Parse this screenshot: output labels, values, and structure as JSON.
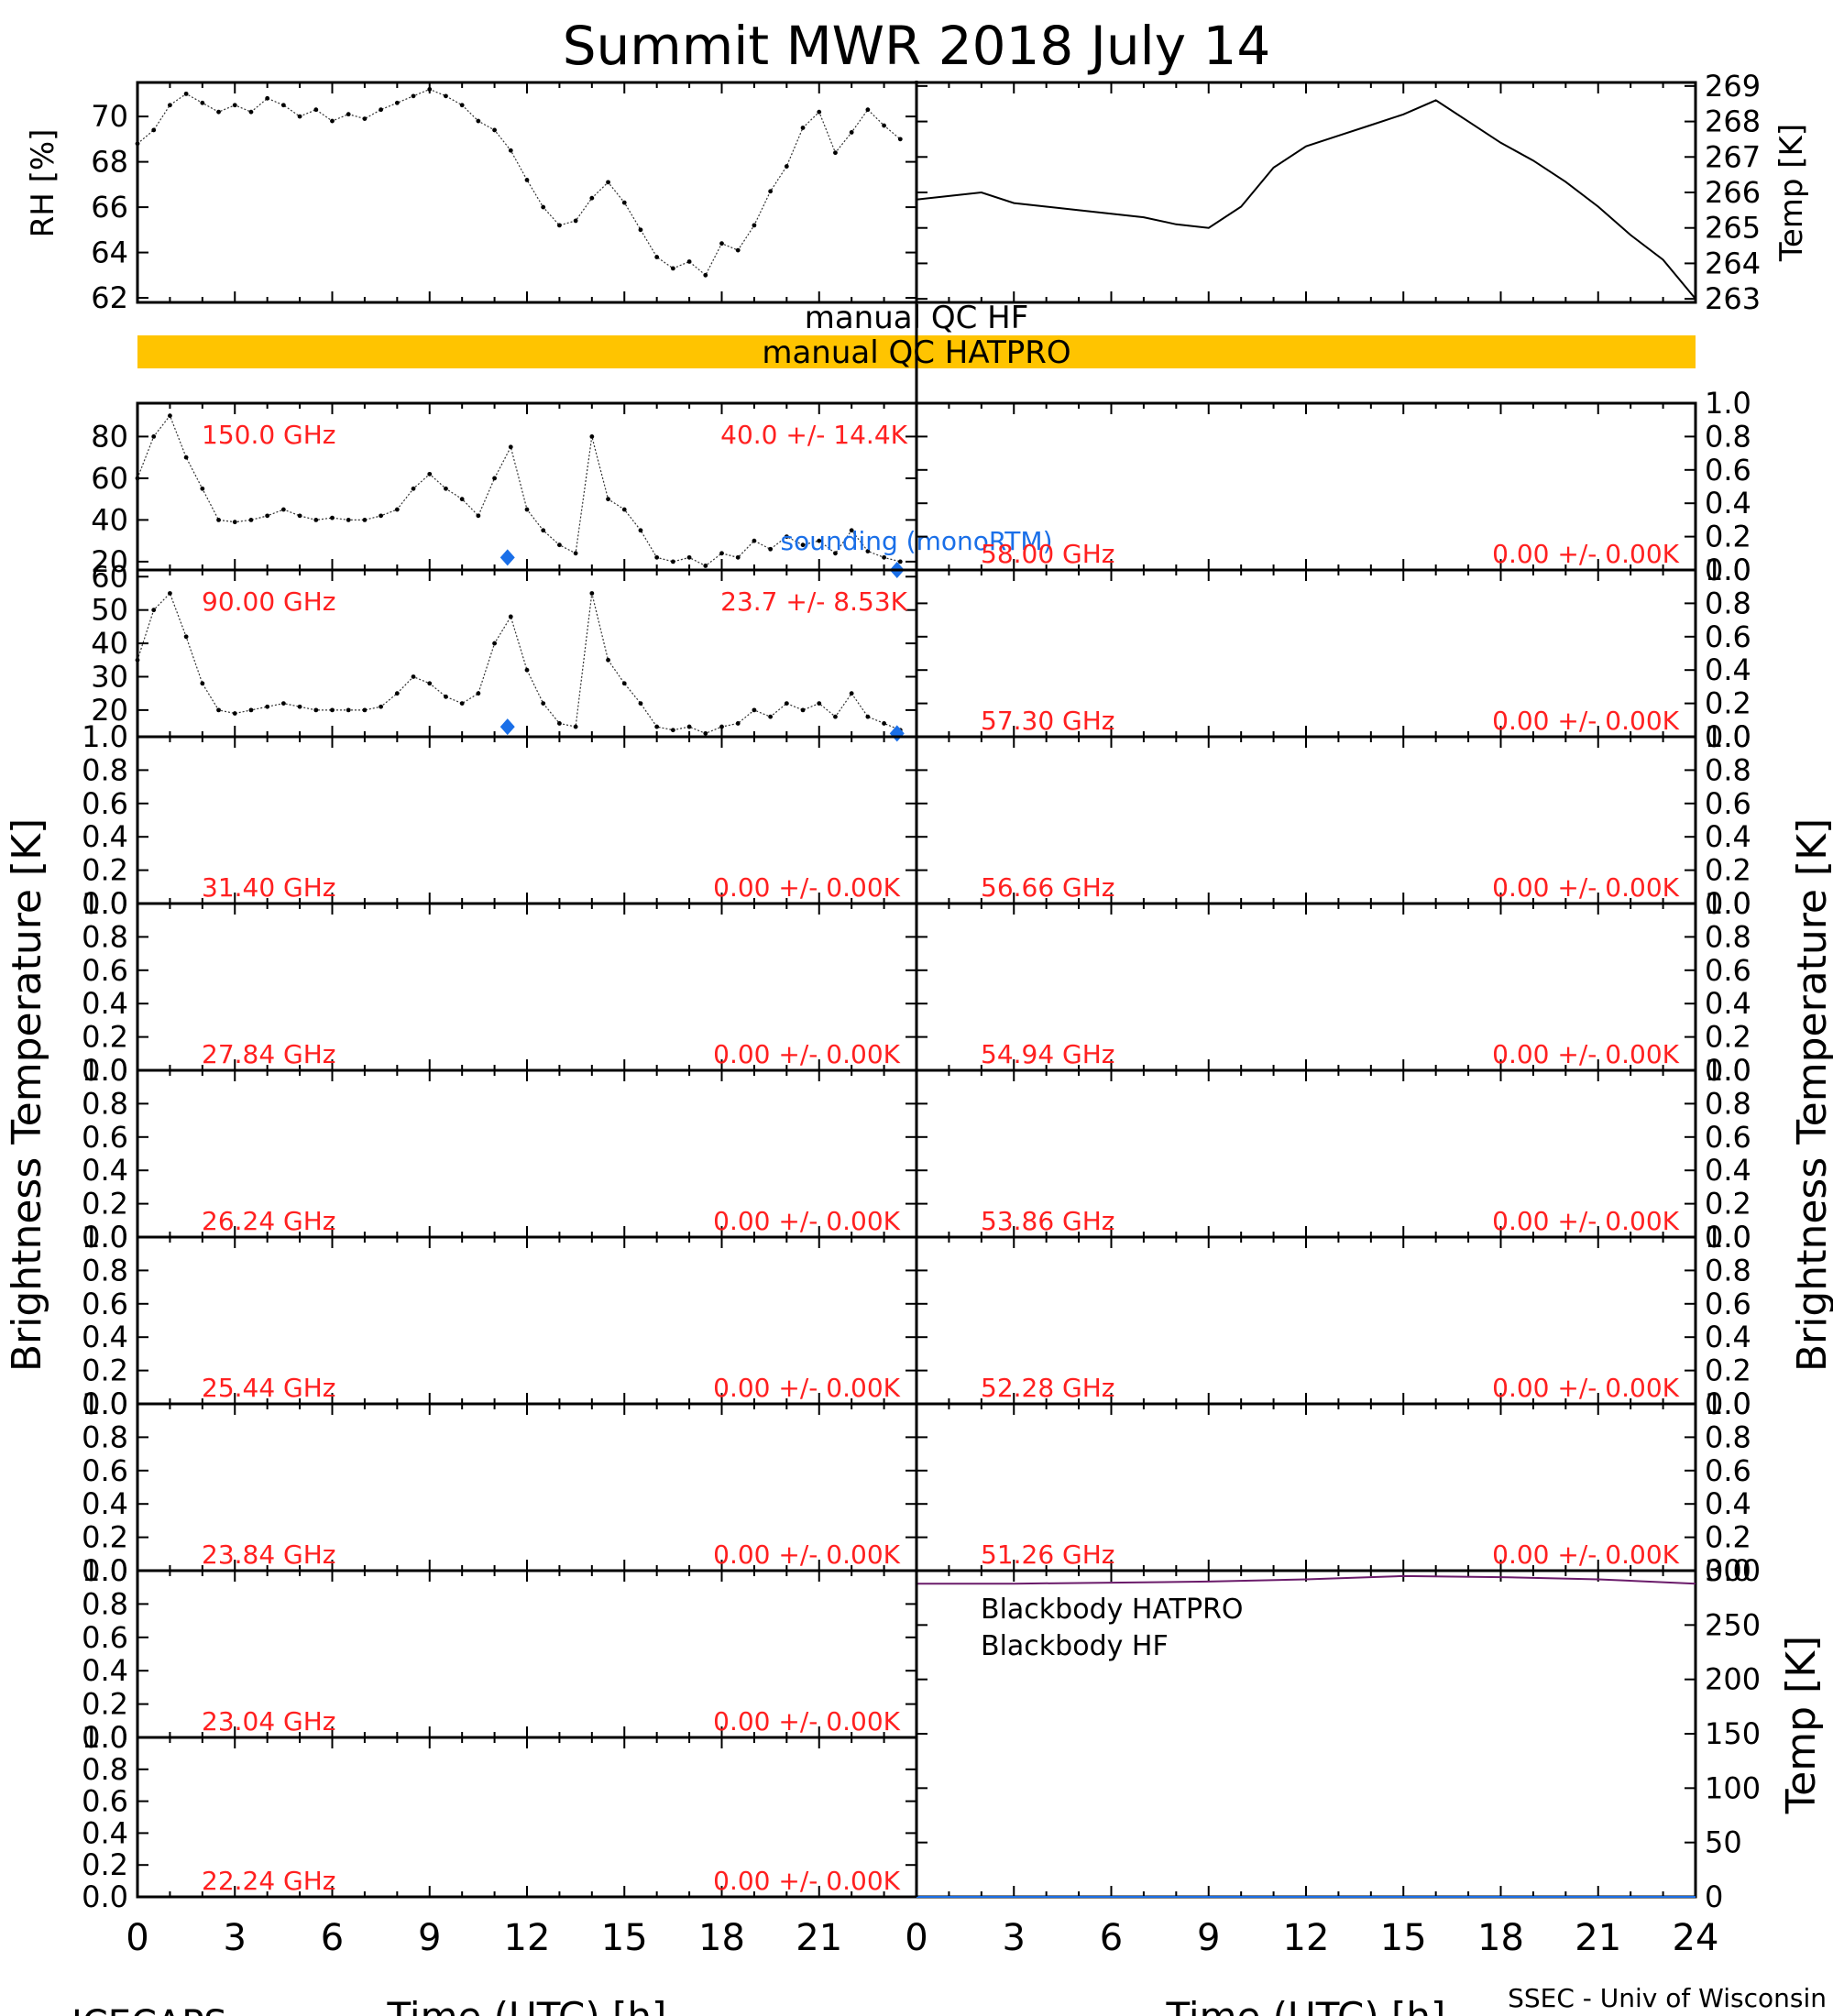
{
  "title": "Summit MWR 2018 July 14",
  "footer": {
    "left": "ICECAPS",
    "right": "SSEC - Univ of Wisconsin"
  },
  "time_axis": {
    "label": "Time (UTC) [h]",
    "ticks": [
      "0",
      "3",
      "6",
      "9",
      "12",
      "15",
      "18",
      "21",
      "24"
    ]
  },
  "qc": {
    "hf_label": "manual QC HF",
    "hatpro_label": "manual QC HATPRO",
    "hatpro_color": "#ffc400"
  },
  "colors": {
    "red": "#ff2020",
    "blue": "#1a6fe8",
    "purple": "#6a1b6a",
    "qc_bar": "#ffc400"
  },
  "left_axis_title": "Brightness Temperature [K]",
  "right_axis_title": "Brightness Temperature [K]",
  "chart_data": [
    {
      "id": "rh",
      "type": "scatter",
      "ylabel": "RH [%]",
      "ylim": [
        61.8,
        71.5
      ],
      "yticks": [
        "62",
        "64",
        "66",
        "68",
        "70"
      ],
      "xlim": [
        0,
        24
      ],
      "x": [
        0,
        0.5,
        1,
        1.5,
        2,
        2.5,
        3,
        3.5,
        4,
        4.5,
        5,
        5.5,
        6,
        6.5,
        7,
        7.5,
        8,
        8.5,
        9,
        9.5,
        10,
        10.5,
        11,
        11.5,
        12,
        12.5,
        13,
        13.5,
        14,
        14.5,
        15,
        15.5,
        16,
        16.5,
        17,
        17.5,
        18,
        18.5,
        19,
        19.5,
        20,
        20.5,
        21,
        21.5,
        22,
        22.5,
        23,
        23.5
      ],
      "values": [
        68.8,
        69.4,
        70.5,
        71.0,
        70.6,
        70.2,
        70.5,
        70.2,
        70.8,
        70.5,
        70.0,
        70.3,
        69.8,
        70.1,
        69.9,
        70.3,
        70.6,
        70.9,
        71.2,
        70.9,
        70.5,
        69.8,
        69.4,
        68.5,
        67.2,
        66.0,
        65.2,
        65.4,
        66.4,
        67.1,
        66.2,
        65.0,
        63.8,
        63.3,
        63.6,
        63.0,
        64.4,
        64.1,
        65.2,
        66.7,
        67.8,
        69.5,
        70.2,
        68.4,
        69.3,
        70.3,
        69.6,
        69.0
      ]
    },
    {
      "id": "temp",
      "type": "line",
      "ylabel": "Temp [K]",
      "ylim": [
        262.9,
        269.1
      ],
      "yticks": [
        "263",
        "264",
        "265",
        "266",
        "267",
        "268",
        "269"
      ],
      "xlim": [
        0,
        24
      ],
      "x": [
        0,
        1,
        2,
        3,
        4,
        5,
        6,
        7,
        8,
        9,
        10,
        11,
        12,
        13,
        14,
        15,
        16,
        17,
        18,
        19,
        20,
        21,
        22,
        23,
        24
      ],
      "values": [
        265.8,
        265.9,
        266.0,
        265.7,
        265.6,
        265.5,
        265.4,
        265.3,
        265.1,
        265.0,
        265.6,
        266.7,
        267.3,
        267.6,
        267.9,
        268.2,
        268.6,
        268.0,
        267.4,
        266.9,
        266.3,
        265.6,
        264.8,
        264.1,
        263.0
      ]
    },
    {
      "id": "ch150",
      "column": "left",
      "type": "scatter",
      "channel": "150.0 GHz",
      "stat": "40.0 +/-  14.4K",
      "ylim": [
        16,
        96
      ],
      "yticks": [
        "20",
        "40",
        "60",
        "80"
      ],
      "xlim": [
        0,
        24
      ],
      "x": [
        0,
        0.5,
        1,
        1.5,
        2,
        2.5,
        3,
        3.5,
        4,
        4.5,
        5,
        5.5,
        6,
        6.5,
        7,
        7.5,
        8,
        8.5,
        9,
        9.5,
        10,
        10.5,
        11,
        11.5,
        12,
        12.5,
        13,
        13.5,
        14,
        14.5,
        15,
        15.5,
        16,
        16.5,
        17,
        17.5,
        18,
        18.5,
        19,
        19.5,
        20,
        20.5,
        21,
        21.5,
        22,
        22.5,
        23,
        23.5
      ],
      "values": [
        60,
        80,
        90,
        70,
        55,
        40,
        39,
        40,
        42,
        45,
        42,
        40,
        41,
        40,
        40,
        42,
        45,
        55,
        62,
        55,
        50,
        42,
        60,
        75,
        45,
        35,
        28,
        24,
        80,
        50,
        45,
        35,
        22,
        20,
        22,
        18,
        24,
        22,
        30,
        26,
        32,
        28,
        30,
        24,
        35,
        25,
        22,
        20
      ],
      "sounding_label": "sounding (monoRTM)",
      "sounding_x": [
        11.4,
        23.4
      ],
      "sounding_values": [
        22,
        16
      ]
    },
    {
      "id": "ch90",
      "column": "left",
      "type": "scatter",
      "channel": "90.00 GHz",
      "stat": "23.7 +/-   8.53K",
      "ylim": [
        12,
        62
      ],
      "yticks": [
        "20",
        "30",
        "40",
        "50",
        "60"
      ],
      "xlim": [
        0,
        24
      ],
      "x": [
        0,
        0.5,
        1,
        1.5,
        2,
        2.5,
        3,
        3.5,
        4,
        4.5,
        5,
        5.5,
        6,
        6.5,
        7,
        7.5,
        8,
        8.5,
        9,
        9.5,
        10,
        10.5,
        11,
        11.5,
        12,
        12.5,
        13,
        13.5,
        14,
        14.5,
        15,
        15.5,
        16,
        16.5,
        17,
        17.5,
        18,
        18.5,
        19,
        19.5,
        20,
        20.5,
        21,
        21.5,
        22,
        22.5,
        23,
        23.5
      ],
      "values": [
        35,
        50,
        55,
        42,
        28,
        20,
        19,
        20,
        21,
        22,
        21,
        20,
        20,
        20,
        20,
        21,
        25,
        30,
        28,
        24,
        22,
        25,
        40,
        48,
        32,
        22,
        16,
        15,
        55,
        35,
        28,
        22,
        15,
        14,
        15,
        13,
        15,
        16,
        20,
        18,
        22,
        20,
        22,
        18,
        25,
        18,
        16,
        14
      ],
      "sounding_x": [
        11.4,
        23.4
      ],
      "sounding_values": [
        15,
        13
      ]
    },
    {
      "id": "ch3140",
      "column": "left",
      "type": "line",
      "channel": "31.40 GHz",
      "stat": "0.00 +/-   0.00K",
      "ylim": [
        0,
        1
      ],
      "yticks": [
        "0.0",
        "0.2",
        "0.4",
        "0.6",
        "0.8",
        "1.0"
      ],
      "xlim": [
        0,
        24
      ]
    },
    {
      "id": "ch2784",
      "column": "left",
      "type": "line",
      "channel": "27.84 GHz",
      "stat": "0.00 +/-   0.00K",
      "ylim": [
        0,
        1
      ],
      "yticks": [
        "0.0",
        "0.2",
        "0.4",
        "0.6",
        "0.8",
        "1.0"
      ],
      "xlim": [
        0,
        24
      ]
    },
    {
      "id": "ch2624",
      "column": "left",
      "type": "line",
      "channel": "26.24 GHz",
      "stat": "0.00 +/-   0.00K",
      "ylim": [
        0,
        1
      ],
      "yticks": [
        "0.0",
        "0.2",
        "0.4",
        "0.6",
        "0.8",
        "1.0"
      ],
      "xlim": [
        0,
        24
      ]
    },
    {
      "id": "ch2544",
      "column": "left",
      "type": "line",
      "channel": "25.44 GHz",
      "stat": "0.00 +/-   0.00K",
      "ylim": [
        0,
        1
      ],
      "yticks": [
        "0.0",
        "0.2",
        "0.4",
        "0.6",
        "0.8",
        "1.0"
      ],
      "xlim": [
        0,
        24
      ]
    },
    {
      "id": "ch2384",
      "column": "left",
      "type": "line",
      "channel": "23.84 GHz",
      "stat": "0.00 +/-   0.00K",
      "ylim": [
        0,
        1
      ],
      "yticks": [
        "0.0",
        "0.2",
        "0.4",
        "0.6",
        "0.8",
        "1.0"
      ],
      "xlim": [
        0,
        24
      ]
    },
    {
      "id": "ch2304",
      "column": "left",
      "type": "line",
      "channel": "23.04 GHz",
      "stat": "0.00 +/-   0.00K",
      "ylim": [
        0,
        1
      ],
      "yticks": [
        "0.0",
        "0.2",
        "0.4",
        "0.6",
        "0.8",
        "1.0"
      ],
      "xlim": [
        0,
        24
      ]
    },
    {
      "id": "ch2224",
      "column": "left",
      "type": "line",
      "channel": "22.24 GHz",
      "stat": "0.00 +/-   0.00K",
      "ylim": [
        0,
        1
      ],
      "yticks": [
        "0.0",
        "0.2",
        "0.4",
        "0.6",
        "0.8",
        "1.0"
      ],
      "xlim": [
        0,
        24
      ]
    },
    {
      "id": "ch5800",
      "column": "right",
      "type": "line",
      "channel": "58.00 GHz",
      "stat": "0.00 +/-   0.00K",
      "ylim": [
        0,
        1
      ],
      "yticks": [
        "0.0",
        "0.2",
        "0.4",
        "0.6",
        "0.8",
        "1.0"
      ],
      "xlim": [
        0,
        24
      ]
    },
    {
      "id": "ch5730",
      "column": "right",
      "type": "line",
      "channel": "57.30 GHz",
      "stat": "0.00 +/-   0.00K",
      "ylim": [
        0,
        1
      ],
      "yticks": [
        "0.0",
        "0.2",
        "0.4",
        "0.6",
        "0.8",
        "1.0"
      ],
      "xlim": [
        0,
        24
      ]
    },
    {
      "id": "ch5666",
      "column": "right",
      "type": "line",
      "channel": "56.66 GHz",
      "stat": "0.00 +/-   0.00K",
      "ylim": [
        0,
        1
      ],
      "yticks": [
        "0.0",
        "0.2",
        "0.4",
        "0.6",
        "0.8",
        "1.0"
      ],
      "xlim": [
        0,
        24
      ]
    },
    {
      "id": "ch5494",
      "column": "right",
      "type": "line",
      "channel": "54.94 GHz",
      "stat": "0.00 +/-   0.00K",
      "ylim": [
        0,
        1
      ],
      "yticks": [
        "0.0",
        "0.2",
        "0.4",
        "0.6",
        "0.8",
        "1.0"
      ],
      "xlim": [
        0,
        24
      ]
    },
    {
      "id": "ch5386",
      "column": "right",
      "type": "line",
      "channel": "53.86 GHz",
      "stat": "0.00 +/-   0.00K",
      "ylim": [
        0,
        1
      ],
      "yticks": [
        "0.0",
        "0.2",
        "0.4",
        "0.6",
        "0.8",
        "1.0"
      ],
      "xlim": [
        0,
        24
      ]
    },
    {
      "id": "ch5228",
      "column": "right",
      "type": "line",
      "channel": "52.28 GHz",
      "stat": "0.00 +/-   0.00K",
      "ylim": [
        0,
        1
      ],
      "yticks": [
        "0.0",
        "0.2",
        "0.4",
        "0.6",
        "0.8",
        "1.0"
      ],
      "xlim": [
        0,
        24
      ]
    },
    {
      "id": "ch5126",
      "column": "right",
      "type": "line",
      "channel": "51.26 GHz",
      "stat": "0.00 +/-   0.00K",
      "ylim": [
        0,
        1
      ],
      "yticks": [
        "0.0",
        "0.2",
        "0.4",
        "0.6",
        "0.8",
        "1.0"
      ],
      "xlim": [
        0,
        24
      ]
    },
    {
      "id": "blackbody",
      "column": "right",
      "type": "line",
      "ylabel": "Temp [K]",
      "ylim": [
        0,
        300
      ],
      "yticks": [
        "0",
        "50",
        "100",
        "150",
        "200",
        "250",
        "300"
      ],
      "xlim": [
        0,
        24
      ],
      "series": [
        {
          "name": "Blackbody HATPRO",
          "color": "#1a6fe8",
          "x": [
            0,
            24
          ],
          "values": [
            0,
            0
          ]
        },
        {
          "name": "Blackbody HF",
          "color": "#6a1b6a",
          "x": [
            0,
            3,
            6,
            9,
            12,
            15,
            18,
            21,
            24
          ],
          "values": [
            288,
            288,
            289,
            290,
            292,
            295,
            294,
            292,
            288
          ]
        }
      ]
    }
  ]
}
